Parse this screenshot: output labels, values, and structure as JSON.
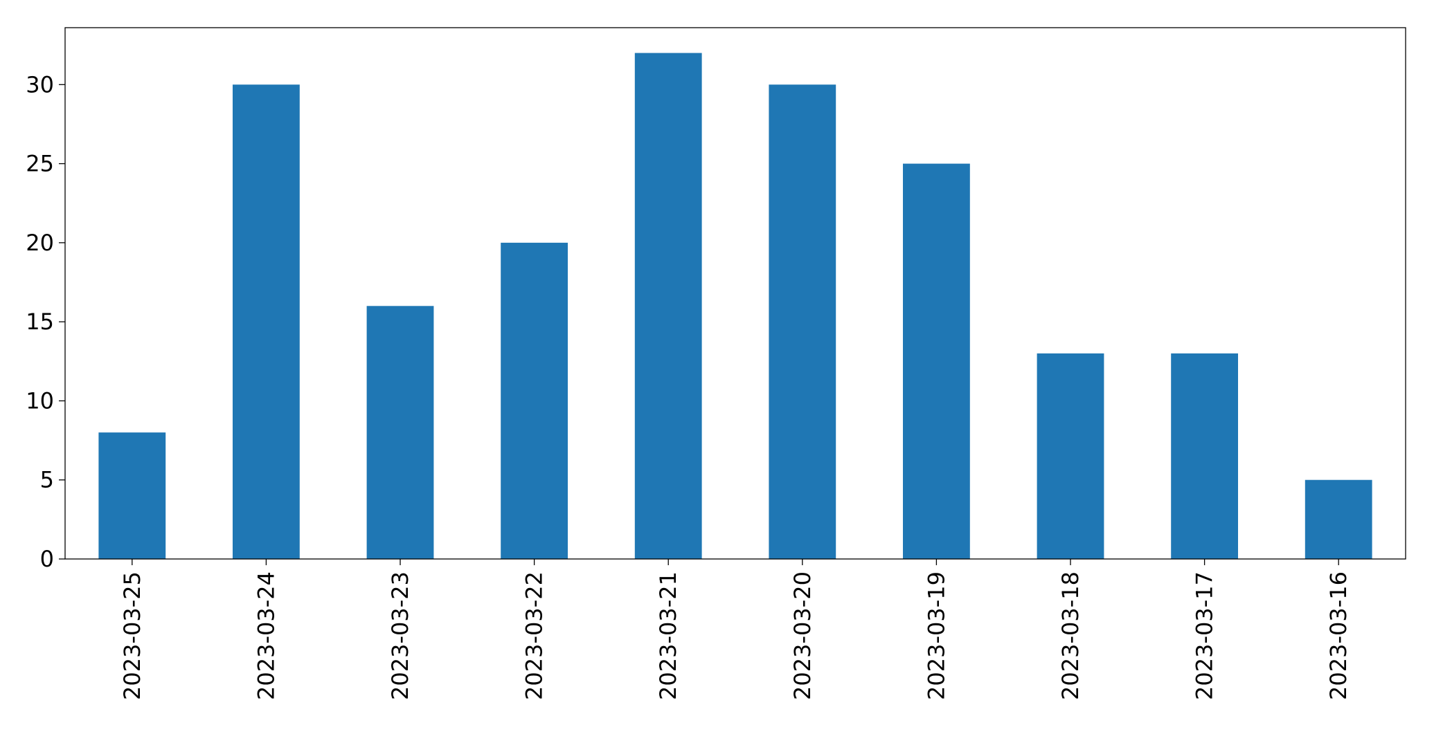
{
  "chart_data": {
    "type": "bar",
    "categories": [
      "2023-03-25",
      "2023-03-24",
      "2023-03-23",
      "2023-03-22",
      "2023-03-21",
      "2023-03-20",
      "2023-03-19",
      "2023-03-18",
      "2023-03-17",
      "2023-03-16"
    ],
    "values": [
      8,
      30,
      16,
      20,
      32,
      30,
      25,
      13,
      13,
      5
    ],
    "color": "#1f77b4",
    "ylim": [
      0,
      33.6
    ],
    "yticks": [
      0,
      5,
      10,
      15,
      20,
      25,
      30
    ],
    "grid": false
  }
}
